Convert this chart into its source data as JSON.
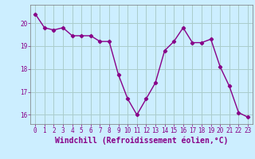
{
  "x": [
    0,
    1,
    2,
    3,
    4,
    5,
    6,
    7,
    8,
    9,
    10,
    11,
    12,
    13,
    14,
    15,
    16,
    17,
    18,
    19,
    20,
    21,
    22,
    23
  ],
  "y": [
    20.4,
    19.8,
    19.7,
    19.8,
    19.45,
    19.45,
    19.45,
    19.2,
    19.2,
    17.75,
    16.7,
    16.0,
    16.7,
    17.4,
    18.8,
    19.2,
    19.8,
    19.15,
    19.15,
    19.3,
    18.1,
    17.25,
    16.1,
    15.9
  ],
  "line_color": "#880088",
  "marker": "D",
  "marker_size": 2.2,
  "bg_color": "#cceeff",
  "grid_color": "#aacccc",
  "xlabel": "Windchill (Refroidissement éolien,°C)",
  "xlabel_fontsize": 7,
  "ylabel_ticks": [
    16,
    17,
    18,
    19,
    20
  ],
  "xtick_labels": [
    "0",
    "1",
    "2",
    "3",
    "4",
    "5",
    "6",
    "7",
    "8",
    "9",
    "10",
    "11",
    "12",
    "13",
    "14",
    "15",
    "16",
    "17",
    "18",
    "19",
    "20",
    "21",
    "22",
    "23"
  ],
  "ylim": [
    15.6,
    20.8
  ],
  "xlim": [
    -0.5,
    23.5
  ],
  "tick_fontsize": 5.5,
  "line_width": 1.0
}
